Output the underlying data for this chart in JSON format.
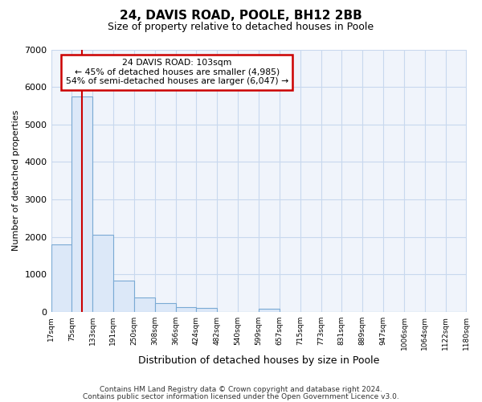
{
  "title1": "24, DAVIS ROAD, POOLE, BH12 2BB",
  "title2": "Size of property relative to detached houses in Poole",
  "xlabel": "Distribution of detached houses by size in Poole",
  "ylabel": "Number of detached properties",
  "annotation_line1": "24 DAVIS ROAD: 103sqm",
  "annotation_line2": "← 45% of detached houses are smaller (4,985)",
  "annotation_line3": "54% of semi-detached houses are larger (6,047) →",
  "property_size": 103,
  "bin_edges": [
    17,
    75,
    133,
    191,
    250,
    308,
    366,
    424,
    482,
    540,
    599,
    657,
    715,
    773,
    831,
    889,
    947,
    1006,
    1064,
    1122,
    1180
  ],
  "bin_counts": [
    1800,
    5750,
    2050,
    830,
    380,
    230,
    120,
    100,
    0,
    0,
    90,
    0,
    0,
    0,
    0,
    0,
    0,
    0,
    0,
    0
  ],
  "bar_color": "#dce8f8",
  "bar_edge_color": "#7aaad4",
  "vline_color": "#cc0000",
  "grid_color": "#c8d8ee",
  "bg_color": "#f0f4fb",
  "annotation_box_color": "#ffffff",
  "annotation_box_edge": "#cc0000",
  "footer1": "Contains HM Land Registry data © Crown copyright and database right 2024.",
  "footer2": "Contains public sector information licensed under the Open Government Licence v3.0.",
  "ylim": [
    0,
    7000
  ],
  "yticks": [
    0,
    1000,
    2000,
    3000,
    4000,
    5000,
    6000,
    7000
  ]
}
